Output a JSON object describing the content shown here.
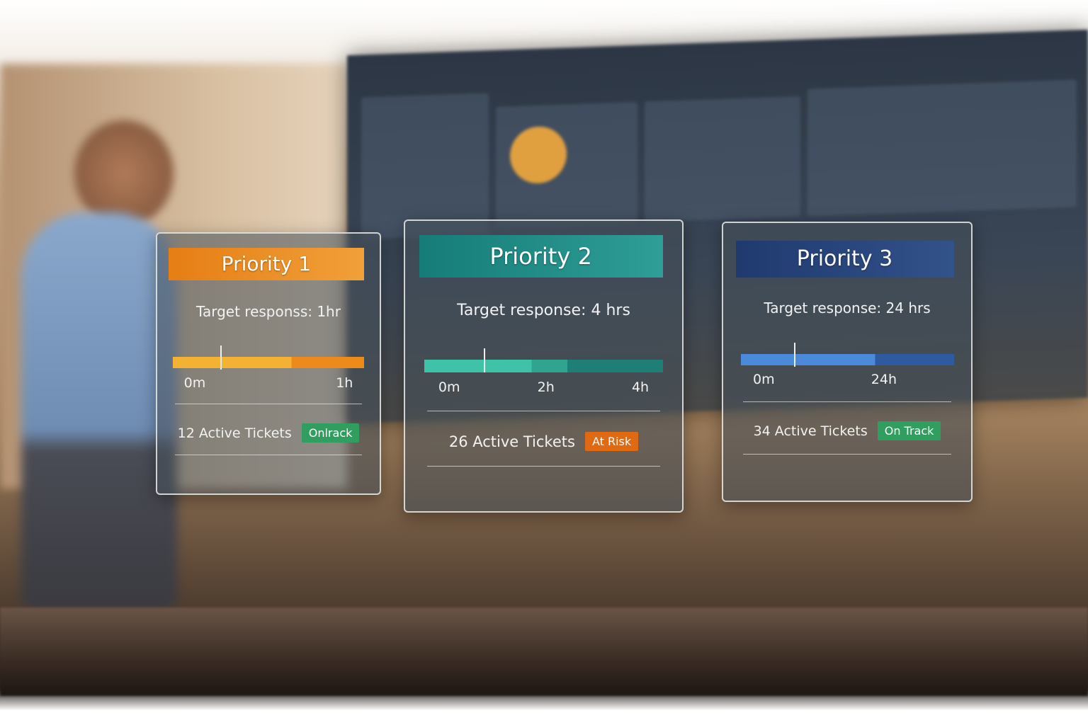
{
  "cards": [
    {
      "title": "Priority 1",
      "target": "Target responss: 1hr",
      "ticks": [
        "0m",
        "1h"
      ],
      "tickets": "12 Active Tickets",
      "status": "Onlrack"
    },
    {
      "title": "Priority 2",
      "target": "Target response: 4 hrs",
      "ticks": [
        "0m",
        "2h",
        "4h"
      ],
      "tickets": "26 Active Tickets",
      "status": "At Risk"
    },
    {
      "title": "Priority 3",
      "target": "Target response: 24 hrs",
      "ticks": [
        "0m",
        "24h"
      ],
      "tickets": "34 Active Tickets",
      "status": "On Track"
    }
  ]
}
